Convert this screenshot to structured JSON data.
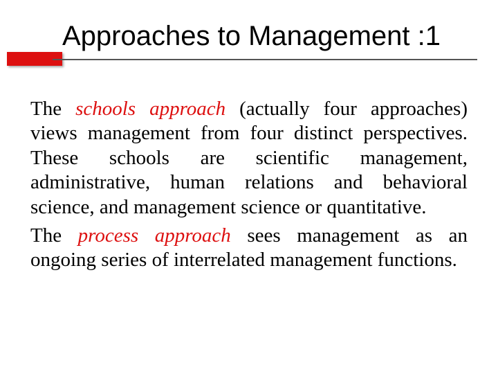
{
  "slide": {
    "title": "Approaches to Management :1",
    "accent_color": "#dd1010",
    "rule_color": "#555555",
    "background_color": "#ffffff",
    "title_fontsize": 40,
    "body_fontsize": 29,
    "paragraphs": [
      {
        "prefix": "The ",
        "keyword": "schools approach",
        "rest": " (actually four approaches) views management from four distinct perspectives. These schools are scientific management, administrative, human relations and behavioral science, and management science or quantitative."
      },
      {
        "prefix": "The ",
        "keyword": "process approach",
        "rest": " sees management as an ongoing series of interrelated management functions."
      }
    ]
  }
}
